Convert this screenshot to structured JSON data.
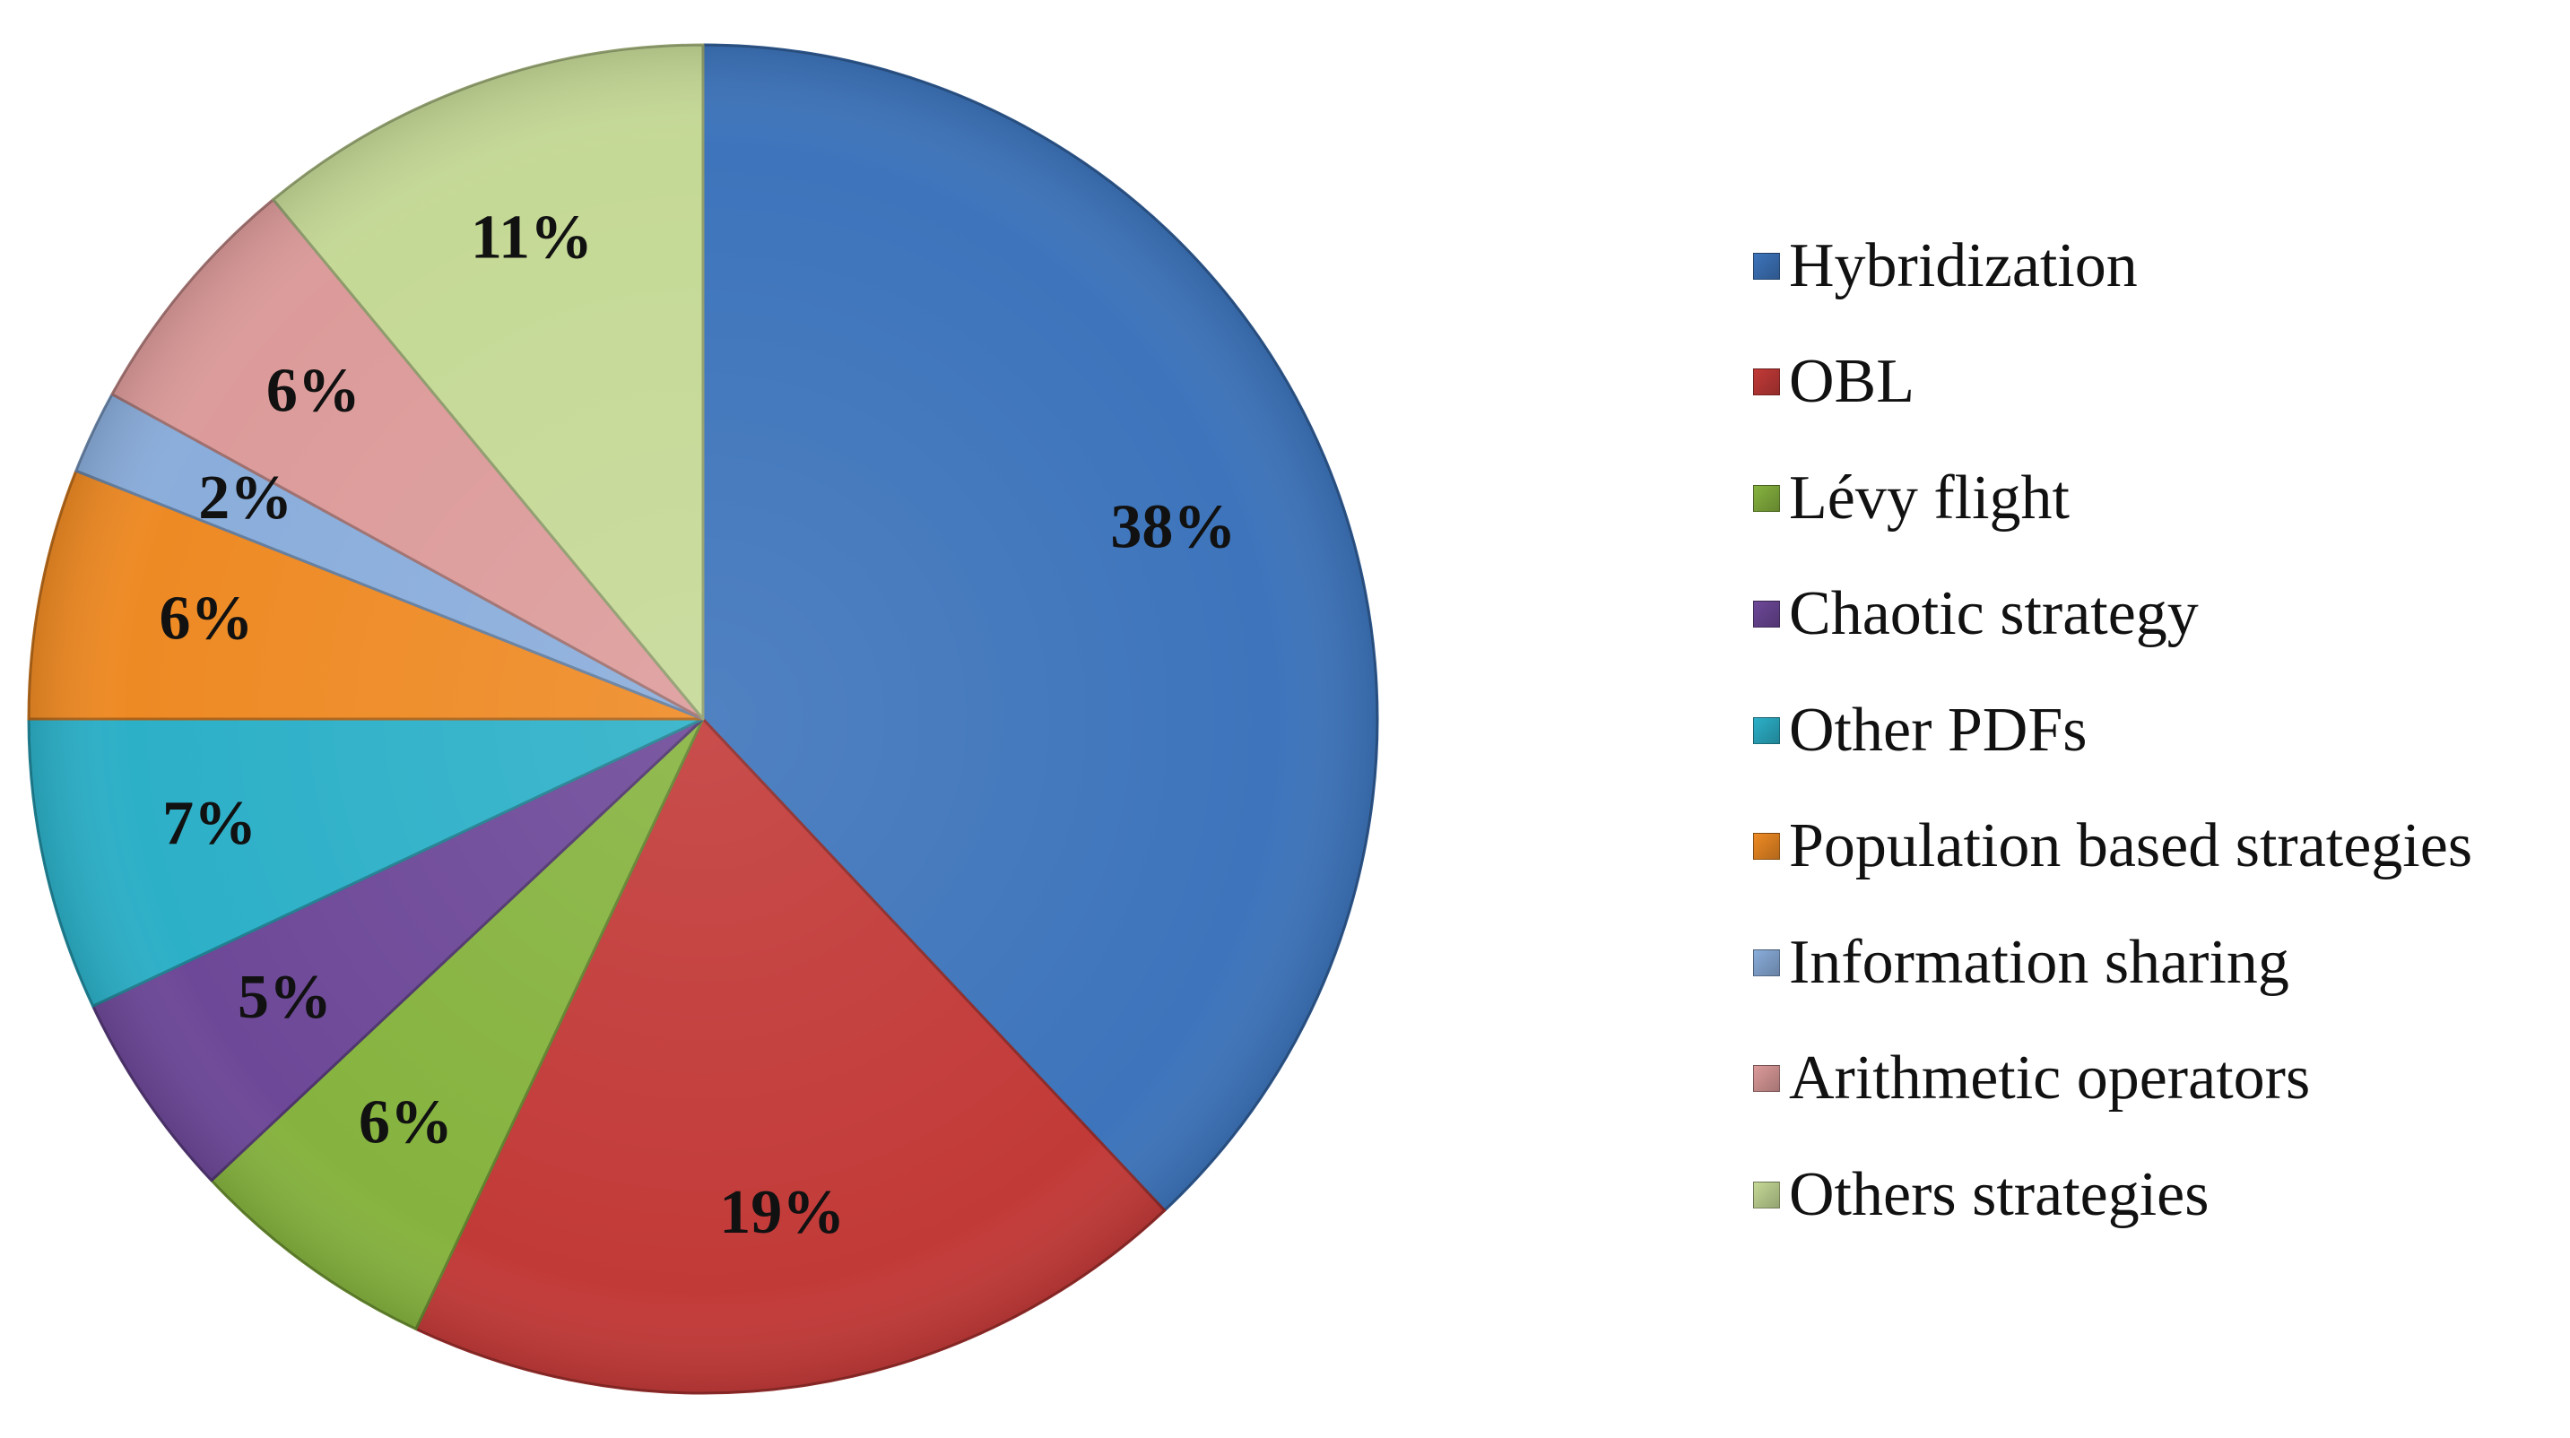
{
  "chart_data": {
    "type": "pie",
    "title": "",
    "slices": [
      {
        "label": "Hybridization",
        "value": 38,
        "display": "38%",
        "color": "#3d74bb"
      },
      {
        "label": "OBL",
        "value": 19,
        "display": "19%",
        "color": "#c23a38"
      },
      {
        "label": "Lévy flight",
        "value": 6,
        "display": "6%",
        "color": "#86b33f"
      },
      {
        "label": "Chaotic strategy",
        "value": 5,
        "display": "5%",
        "color": "#6d4898"
      },
      {
        "label": "Other PDFs",
        "value": 7,
        "display": "7%",
        "color": "#2cb0c8"
      },
      {
        "label": "Population based strategies",
        "value": 6,
        "display": "6%",
        "color": "#ee8a24"
      },
      {
        "label": "Information sharing",
        "value": 2,
        "display": "2%",
        "color": "#8aaddb"
      },
      {
        "label": "Arithmetic operators",
        "value": 6,
        "display": "6%",
        "color": "#dc9b9a"
      },
      {
        "label": "Others strategies",
        "value": 11,
        "display": "11%",
        "color": "#c5d996"
      }
    ],
    "legend_position": "right",
    "start_angle": "top",
    "direction": "clockwise"
  }
}
